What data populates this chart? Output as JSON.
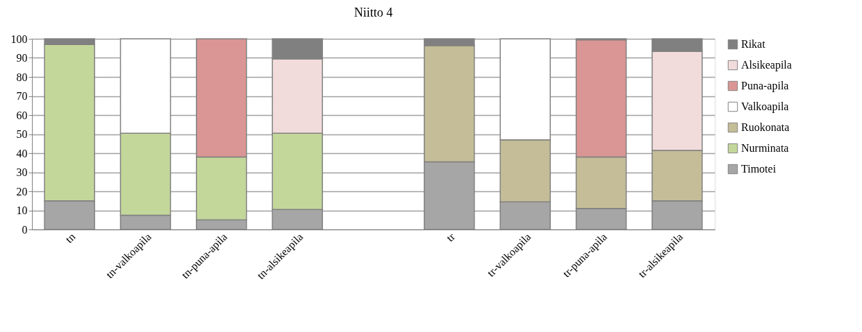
{
  "chart_data": {
    "type": "bar",
    "title": "Niitto 4",
    "stacked": true,
    "categories": [
      "tn",
      "tn-valkoapila",
      "tn-puna-apila",
      "tn-alsikeapila",
      null,
      "tr",
      "tr-valkoapila",
      "tr-puna-apila",
      "tr-alsikeapila"
    ],
    "series": [
      {
        "name": "Timotei",
        "color": "#a6a6a6",
        "values": [
          15,
          7.5,
          5,
          10.5,
          null,
          35.5,
          14.5,
          11,
          15
        ]
      },
      {
        "name": "Nurminata",
        "color": "#c4d79b",
        "values": [
          82,
          43,
          33,
          40,
          null,
          null,
          null,
          null,
          null
        ]
      },
      {
        "name": "Ruokonata",
        "color": "#c4bd97",
        "values": [
          null,
          null,
          null,
          null,
          null,
          61,
          32.5,
          27,
          26.5
        ]
      },
      {
        "name": "Valkoapila",
        "color": "#ffffff",
        "values": [
          null,
          49.5,
          null,
          null,
          null,
          null,
          53,
          null,
          null
        ]
      },
      {
        "name": "Puna-apila",
        "color": "#da9694",
        "values": [
          null,
          null,
          62,
          null,
          null,
          null,
          null,
          61.5,
          null
        ]
      },
      {
        "name": "Alsikeapila",
        "color": "#f2dcdb",
        "values": [
          null,
          null,
          null,
          39,
          null,
          null,
          null,
          null,
          52
        ]
      },
      {
        "name": "Rikat",
        "color": "#808080",
        "values": [
          3,
          null,
          null,
          10.5,
          null,
          3.5,
          null,
          0.5,
          6.5
        ]
      }
    ],
    "ylim": [
      0,
      100
    ],
    "yticks": [
      0,
      10,
      20,
      30,
      40,
      50,
      60,
      70,
      80,
      90,
      100
    ],
    "grid": "y",
    "legend": "right"
  }
}
